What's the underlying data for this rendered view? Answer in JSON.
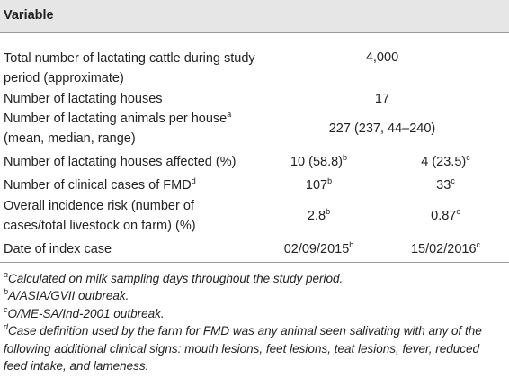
{
  "header": {
    "title": "Variable"
  },
  "rows": [
    {
      "label": "Total number of lactating cattle during study period (approximate)",
      "value": "4,000"
    },
    {
      "label": "Number of lactating houses",
      "value": "17"
    },
    {
      "label": "Number of lactating animals per house",
      "label_sup": "a",
      "label_after": "(mean, median, range)",
      "value": "227 (237, 44–240)"
    },
    {
      "label": "Number of lactating houses affected (%)",
      "cols": [
        {
          "text": "10 (58.8)",
          "sup": "b"
        },
        {
          "text": "4 (23.5)",
          "sup": "c"
        }
      ]
    },
    {
      "label": "Number of clinical cases of FMD",
      "label_sup": "d",
      "cols": [
        {
          "text": "107",
          "sup": "b"
        },
        {
          "text": "33",
          "sup": "c"
        }
      ]
    },
    {
      "label": "Overall incidence risk (number of cases/total livestock on farm) (%)",
      "cols": [
        {
          "text": "2.8",
          "sup": "b"
        },
        {
          "text": "0.87",
          "sup": "c"
        }
      ]
    },
    {
      "label": "Date of index case",
      "cols": [
        {
          "text": "02/09/2015",
          "sup": "b"
        },
        {
          "text": "15/02/2016",
          "sup": "c"
        }
      ]
    }
  ],
  "footnotes": [
    {
      "sup": "a",
      "text": "Calculated on milk sampling days throughout the study period."
    },
    {
      "sup": "b",
      "text": "A/ASIA/GVII outbreak."
    },
    {
      "sup": "c",
      "text": "O/ME-SA/Ind-2001 outbreak."
    },
    {
      "sup": "d",
      "text": "Case definition used by the farm for FMD was any animal seen salivating with any of the following additional clinical signs: mouth lesions, feet lesions, teat lesions, fever, reduced feed intake, and lameness."
    }
  ]
}
